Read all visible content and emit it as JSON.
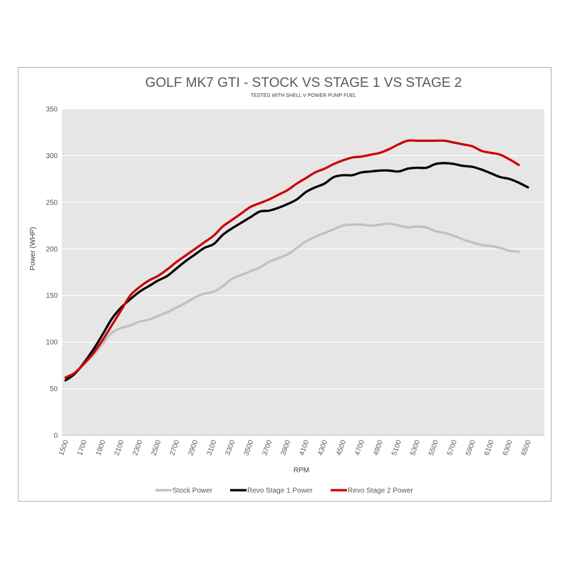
{
  "chart_data": {
    "type": "line",
    "title": "GOLF MK7 GTI - STOCK VS STAGE 1 VS STAGE 2",
    "subtitle": "TESTED WITH SHELL V POWER PUMP FUEL",
    "xlabel": "RPM",
    "ylabel": "Power (WHP)",
    "xlim": [
      1500,
      6500
    ],
    "ylim": [
      0,
      350
    ],
    "x_ticks": [
      1500,
      1700,
      1900,
      2100,
      2300,
      2500,
      2700,
      2900,
      3100,
      3300,
      3500,
      3700,
      3900,
      4100,
      4300,
      4500,
      4700,
      4900,
      5100,
      5300,
      5500,
      5700,
      5900,
      6100,
      6300,
      6500
    ],
    "y_ticks": [
      0,
      50,
      100,
      150,
      200,
      250,
      300,
      350
    ],
    "grid": "horizontal",
    "legend": "bottom",
    "plot_background": "#e6e6e6",
    "series": [
      {
        "name": "Stock Power",
        "color": "#c0c0c0",
        "x": [
          1500,
          1600,
          1700,
          1800,
          1900,
          2000,
          2100,
          2200,
          2300,
          2400,
          2500,
          2600,
          2700,
          2800,
          2900,
          3000,
          3100,
          3200,
          3300,
          3400,
          3500,
          3600,
          3700,
          3800,
          3900,
          4000,
          4100,
          4200,
          4300,
          4400,
          4500,
          4600,
          4700,
          4800,
          4900,
          5000,
          5100,
          5200,
          5300,
          5400,
          5500,
          5600,
          5700,
          5800,
          5900,
          6000,
          6100,
          6200,
          6300,
          6400
        ],
        "y": [
          62,
          67,
          76,
          86,
          98,
          110,
          115,
          118,
          122,
          124,
          128,
          132,
          137,
          142,
          148,
          152,
          154,
          160,
          168,
          172,
          176,
          180,
          186,
          190,
          194,
          201,
          208,
          213,
          217,
          221,
          225,
          226,
          226,
          225,
          226,
          227,
          225,
          223,
          224,
          223,
          219,
          217,
          214,
          210,
          207,
          204,
          203,
          201,
          198,
          197
        ]
      },
      {
        "name": "Revo Stage 1 Power",
        "color": "#000000",
        "x": [
          1500,
          1600,
          1700,
          1800,
          1900,
          2000,
          2100,
          2200,
          2300,
          2400,
          2500,
          2600,
          2700,
          2800,
          2900,
          3000,
          3100,
          3200,
          3300,
          3400,
          3500,
          3600,
          3700,
          3800,
          3900,
          4000,
          4100,
          4200,
          4300,
          4400,
          4500,
          4600,
          4700,
          4800,
          4900,
          5000,
          5100,
          5200,
          5300,
          5400,
          5500,
          5600,
          5700,
          5800,
          5900,
          6000,
          6100,
          6200,
          6300,
          6400,
          6500
        ],
        "y": [
          59,
          66,
          78,
          92,
          108,
          125,
          137,
          146,
          154,
          160,
          166,
          171,
          179,
          187,
          194,
          201,
          205,
          215,
          222,
          228,
          234,
          240,
          241,
          244,
          248,
          253,
          261,
          266,
          270,
          277,
          279,
          279,
          282,
          283,
          284,
          284,
          283,
          286,
          287,
          287,
          291,
          292,
          291,
          289,
          288,
          285,
          281,
          277,
          275,
          271,
          266
        ]
      },
      {
        "name": "Revo Stage 2 Power",
        "color": "#cc0000",
        "x": [
          1500,
          1600,
          1700,
          1800,
          1900,
          2000,
          2100,
          2200,
          2300,
          2400,
          2500,
          2600,
          2700,
          2800,
          2900,
          3000,
          3100,
          3200,
          3300,
          3400,
          3500,
          3600,
          3700,
          3800,
          3900,
          4000,
          4100,
          4200,
          4300,
          4400,
          4500,
          4600,
          4700,
          4800,
          4900,
          5000,
          5100,
          5200,
          5300,
          5400,
          5500,
          5600,
          5700,
          5800,
          5900,
          6000,
          6100,
          6200,
          6300,
          6400
        ],
        "y": [
          62,
          67,
          77,
          88,
          102,
          118,
          134,
          150,
          159,
          166,
          171,
          178,
          186,
          193,
          200,
          207,
          214,
          224,
          231,
          238,
          245,
          249,
          253,
          258,
          263,
          270,
          276,
          282,
          286,
          291,
          295,
          298,
          299,
          301,
          303,
          307,
          312,
          316,
          316,
          316,
          316,
          316,
          314,
          312,
          310,
          305,
          303,
          301,
          296,
          290
        ]
      }
    ]
  }
}
